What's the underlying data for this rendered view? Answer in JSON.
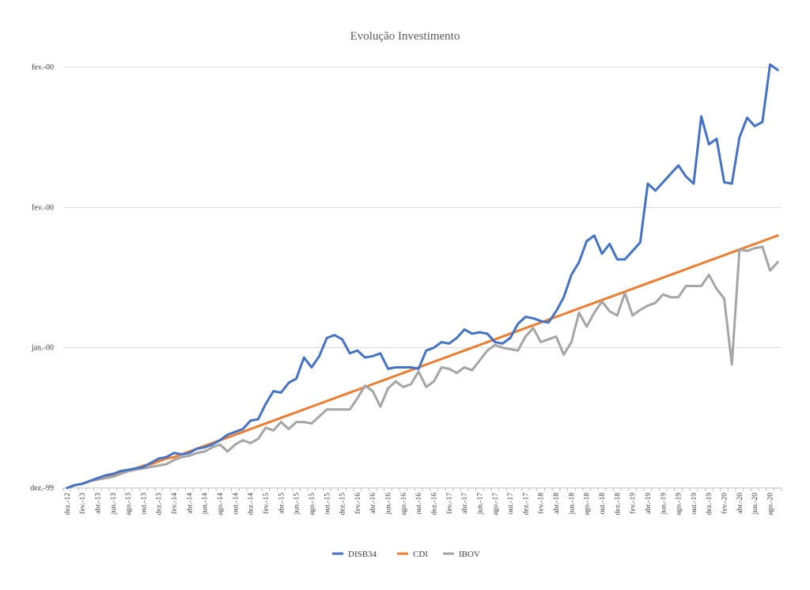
{
  "chart_data": {
    "type": "line",
    "title": "Evolução Investimento",
    "xlabel": "",
    "ylabel": "",
    "y_tick_labels": [
      "dez.-99",
      "jan.-00",
      "fev.-00",
      "fev.-00"
    ],
    "ylim": [
      0,
      3
    ],
    "grid": true,
    "legend_position": "bottom",
    "x": [
      "dez.-12",
      "jan.-13",
      "fev.-13",
      "mar.-13",
      "abr.-13",
      "mai.-13",
      "jun.-13",
      "jul.-13",
      "ago.-13",
      "set.-13",
      "out.-13",
      "nov.-13",
      "dez.-13",
      "jan.-14",
      "fev.-14",
      "mar.-14",
      "abr.-14",
      "mai.-14",
      "jun.-14",
      "jul.-14",
      "ago.-14",
      "set.-14",
      "out.-14",
      "nov.-14",
      "dez.-14",
      "jan.-15",
      "fev.-15",
      "mar.-15",
      "abr.-15",
      "mai.-15",
      "jun.-15",
      "jul.-15",
      "ago.-15",
      "set.-15",
      "out.-15",
      "nov.-15",
      "dez.-15",
      "jan.-16",
      "fev.-16",
      "mar.-16",
      "abr.-16",
      "mai.-16",
      "jun.-16",
      "jul.-16",
      "ago.-16",
      "set.-16",
      "out.-16",
      "nov.-16",
      "dez.-16",
      "jan.-17",
      "fev.-17",
      "mar.-17",
      "abr.-17",
      "mai.-17",
      "jun.-17",
      "jul.-17",
      "ago.-17",
      "set.-17",
      "out.-17",
      "nov.-17",
      "dez.-17",
      "jan.-18",
      "fev.-18",
      "mar.-18",
      "abr.-18",
      "mai.-18",
      "jun.-18",
      "jul.-18",
      "ago.-18",
      "set.-18",
      "out.-18",
      "nov.-18",
      "dez.-18",
      "jan.-19",
      "fev.-19",
      "mar.-19",
      "abr.-19",
      "mai.-19",
      "jun.-19",
      "jul.-19",
      "ago.-19",
      "set.-19",
      "out.-19",
      "nov.-19",
      "dez.-19",
      "jan.-20",
      "fev.-20",
      "mar.-20",
      "abr.-20",
      "mai.-20",
      "jun.-20",
      "jul.-20",
      "ago.-20",
      "set.-20"
    ],
    "x_tick_labels": [
      "dez.-12",
      "fev.-13",
      "abr.-13",
      "jun.-13",
      "ago.-13",
      "out.-13",
      "dez.-13",
      "fev.-14",
      "abr.-14",
      "jun.-14",
      "ago.-14",
      "out.-14",
      "dez.-14",
      "fev.-15",
      "abr.-15",
      "jun.-15",
      "ago.-15",
      "out.-15",
      "dez.-15",
      "fev.-16",
      "abr.-16",
      "jun.-16",
      "ago.-16",
      "out.-16",
      "dez.-16",
      "fev.-17",
      "abr.-17",
      "jun.-17",
      "ago.-17",
      "out.-17",
      "dez.-17",
      "fev.-18",
      "abr.-18",
      "jun.-18",
      "ago.-18",
      "out.-18",
      "dez.-18",
      "fev.-19",
      "abr.-19",
      "jun.-19",
      "ago.-19",
      "out.-19",
      "dez.-19",
      "fev.-20",
      "abr.-20",
      "jun.-20",
      "ago.-20"
    ],
    "series": [
      {
        "name": "DISB34",
        "color": "#4472C4",
        "values": [
          0.0,
          0.02,
          0.03,
          0.05,
          0.07,
          0.09,
          0.1,
          0.12,
          0.13,
          0.14,
          0.15,
          0.18,
          0.21,
          0.22,
          0.25,
          0.24,
          0.25,
          0.28,
          0.29,
          0.31,
          0.34,
          0.38,
          0.4,
          0.42,
          0.48,
          0.49,
          0.6,
          0.69,
          0.68,
          0.75,
          0.78,
          0.93,
          0.86,
          0.94,
          1.07,
          1.09,
          1.06,
          0.96,
          0.98,
          0.93,
          0.94,
          0.96,
          0.85,
          0.86,
          0.86,
          0.86,
          0.85,
          0.98,
          1.0,
          1.04,
          1.03,
          1.07,
          1.13,
          1.1,
          1.11,
          1.1,
          1.04,
          1.03,
          1.07,
          1.17,
          1.22,
          1.21,
          1.19,
          1.18,
          1.26,
          1.36,
          1.52,
          1.61,
          1.76,
          1.8,
          1.67,
          1.74,
          1.63,
          1.63,
          1.69,
          1.75,
          2.17,
          2.12,
          2.18,
          2.24,
          2.3,
          2.22,
          2.17,
          2.65,
          2.45,
          2.49,
          2.18,
          2.17,
          2.5,
          2.64,
          2.58,
          2.61,
          3.02,
          2.98
        ]
      },
      {
        "name": "CDI",
        "color": "#ED7D31",
        "values": [
          0.0,
          0.02,
          0.03,
          0.05,
          0.06,
          0.08,
          0.09,
          0.11,
          0.12,
          0.14,
          0.16,
          0.17,
          0.19,
          0.21,
          0.22,
          0.24,
          0.26,
          0.28,
          0.3,
          0.32,
          0.34,
          0.36,
          0.38,
          0.4,
          0.42,
          0.44,
          0.46,
          0.48,
          0.5,
          0.52,
          0.54,
          0.56,
          0.58,
          0.6,
          0.62,
          0.64,
          0.66,
          0.68,
          0.7,
          0.72,
          0.74,
          0.76,
          0.78,
          0.8,
          0.82,
          0.84,
          0.86,
          0.88,
          0.9,
          0.92,
          0.94,
          0.96,
          0.98,
          1.0,
          1.02,
          1.04,
          1.06,
          1.08,
          1.1,
          1.12,
          1.14,
          1.16,
          1.18,
          1.2,
          1.22,
          1.24,
          1.26,
          1.28,
          1.3,
          1.32,
          1.34,
          1.36,
          1.38,
          1.4,
          1.42,
          1.44,
          1.46,
          1.48,
          1.5,
          1.52,
          1.54,
          1.56,
          1.58,
          1.6,
          1.62,
          1.64,
          1.66,
          1.68,
          1.7,
          1.72,
          1.74,
          1.76,
          1.78,
          1.8
        ]
      },
      {
        "name": "IBOV",
        "color": "#A5A5A5",
        "values": [
          0.0,
          0.02,
          0.03,
          0.05,
          0.06,
          0.07,
          0.08,
          0.1,
          0.12,
          0.13,
          0.14,
          0.15,
          0.16,
          0.17,
          0.2,
          0.22,
          0.23,
          0.25,
          0.26,
          0.29,
          0.31,
          0.26,
          0.31,
          0.34,
          0.32,
          0.35,
          0.43,
          0.41,
          0.47,
          0.42,
          0.47,
          0.47,
          0.46,
          0.51,
          0.56,
          0.56,
          0.56,
          0.56,
          0.64,
          0.73,
          0.69,
          0.58,
          0.71,
          0.76,
          0.72,
          0.74,
          0.83,
          0.72,
          0.76,
          0.86,
          0.85,
          0.82,
          0.86,
          0.84,
          0.91,
          0.98,
          1.02,
          1.0,
          0.99,
          0.98,
          1.08,
          1.14,
          1.04,
          1.06,
          1.08,
          0.95,
          1.04,
          1.25,
          1.15,
          1.25,
          1.33,
          1.26,
          1.23,
          1.39,
          1.23,
          1.27,
          1.3,
          1.32,
          1.38,
          1.36,
          1.36,
          1.44,
          1.44,
          1.44,
          1.52,
          1.42,
          1.35,
          0.88,
          1.7,
          1.69,
          1.71,
          1.72,
          1.55,
          1.61
        ]
      }
    ]
  }
}
